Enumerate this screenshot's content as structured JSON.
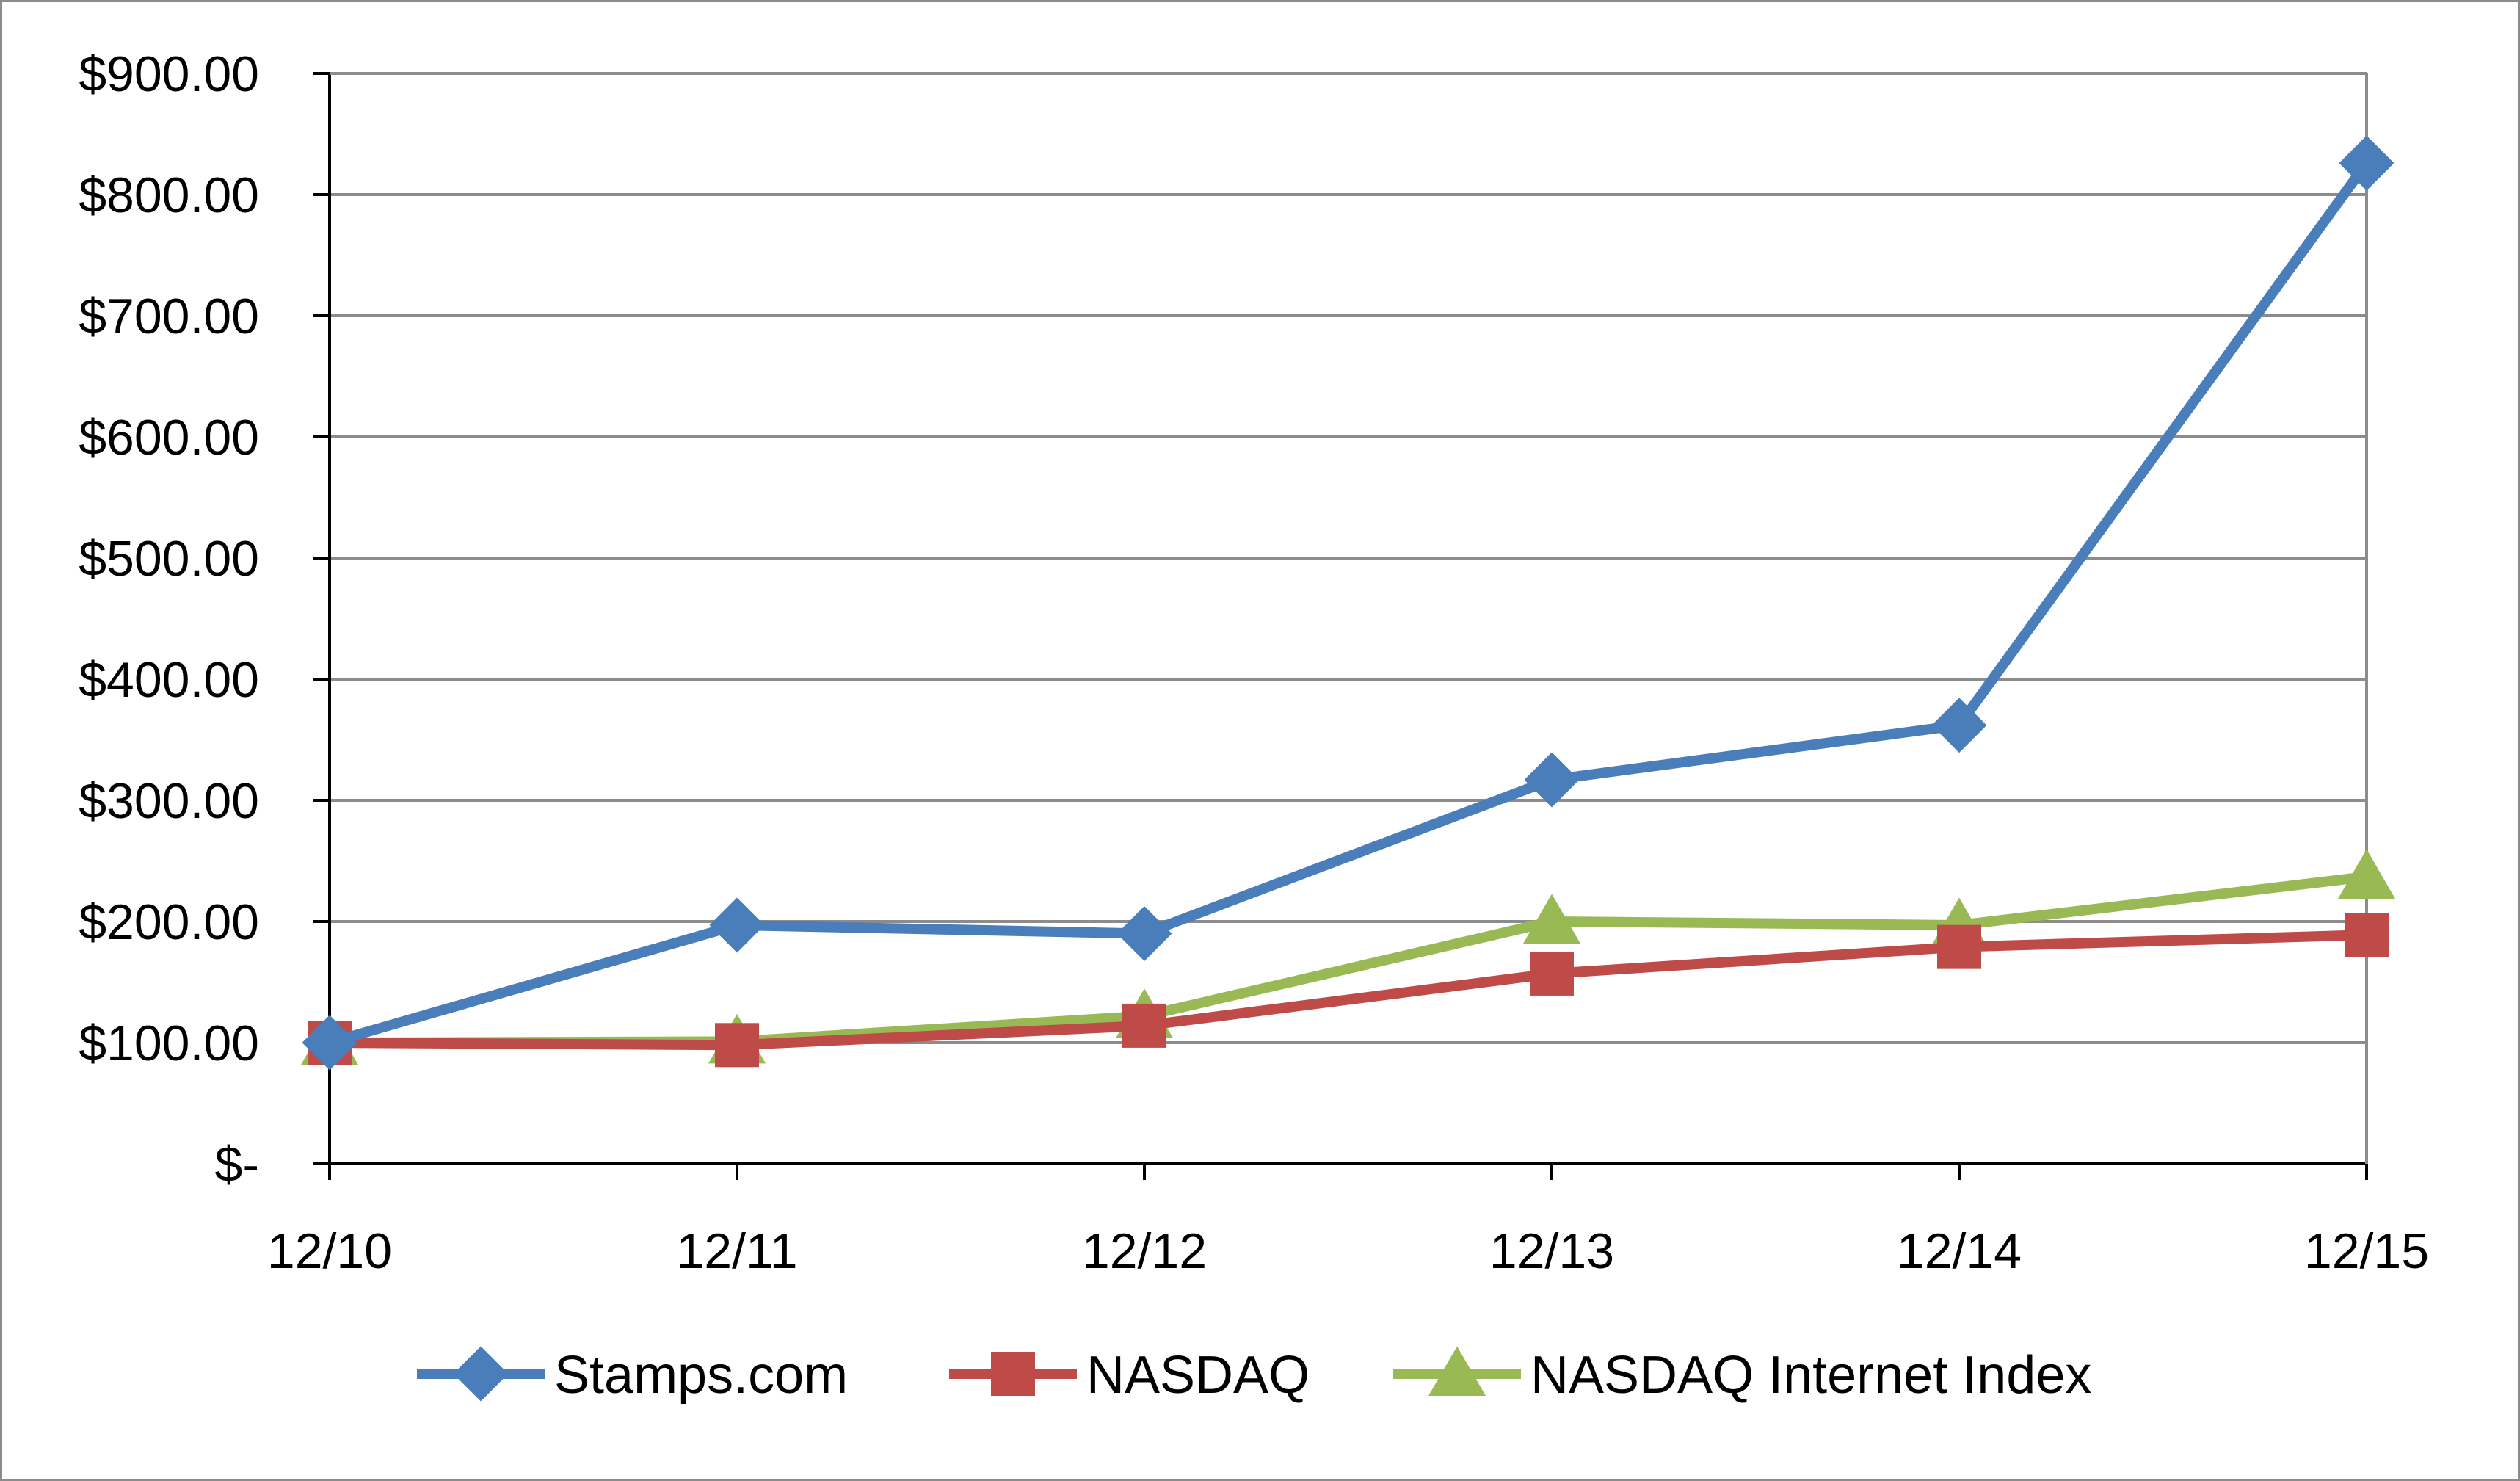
{
  "chart_data": {
    "type": "line",
    "title": "",
    "xlabel": "",
    "ylabel": "",
    "categories": [
      "12/10",
      "12/11",
      "12/12",
      "12/13",
      "12/14",
      "12/15"
    ],
    "ylim": [
      0,
      900
    ],
    "y_ticks": [
      0,
      100,
      200,
      300,
      400,
      500,
      600,
      700,
      800,
      900
    ],
    "y_tick_labels": [
      "$-",
      "$100.00",
      "$200.00",
      "$300.00",
      "$400.00",
      "$500.00",
      "$600.00",
      "$700.00",
      "$800.00",
      "$900.00"
    ],
    "grid": true,
    "legend_position": "bottom",
    "series": [
      {
        "name": "Stamps.com",
        "color": "#4a7ebb",
        "marker": "diamond",
        "values": [
          100,
          197,
          190,
          317,
          362,
          826
        ]
      },
      {
        "name": "NASDAQ",
        "color": "#be4b48",
        "marker": "square",
        "values": [
          100,
          98,
          114,
          157,
          179,
          189
        ]
      },
      {
        "name": "NASDAQ Internet Index",
        "color": "#98b954",
        "marker": "triangle",
        "values": [
          100,
          101,
          122,
          200,
          197,
          237
        ]
      }
    ]
  }
}
